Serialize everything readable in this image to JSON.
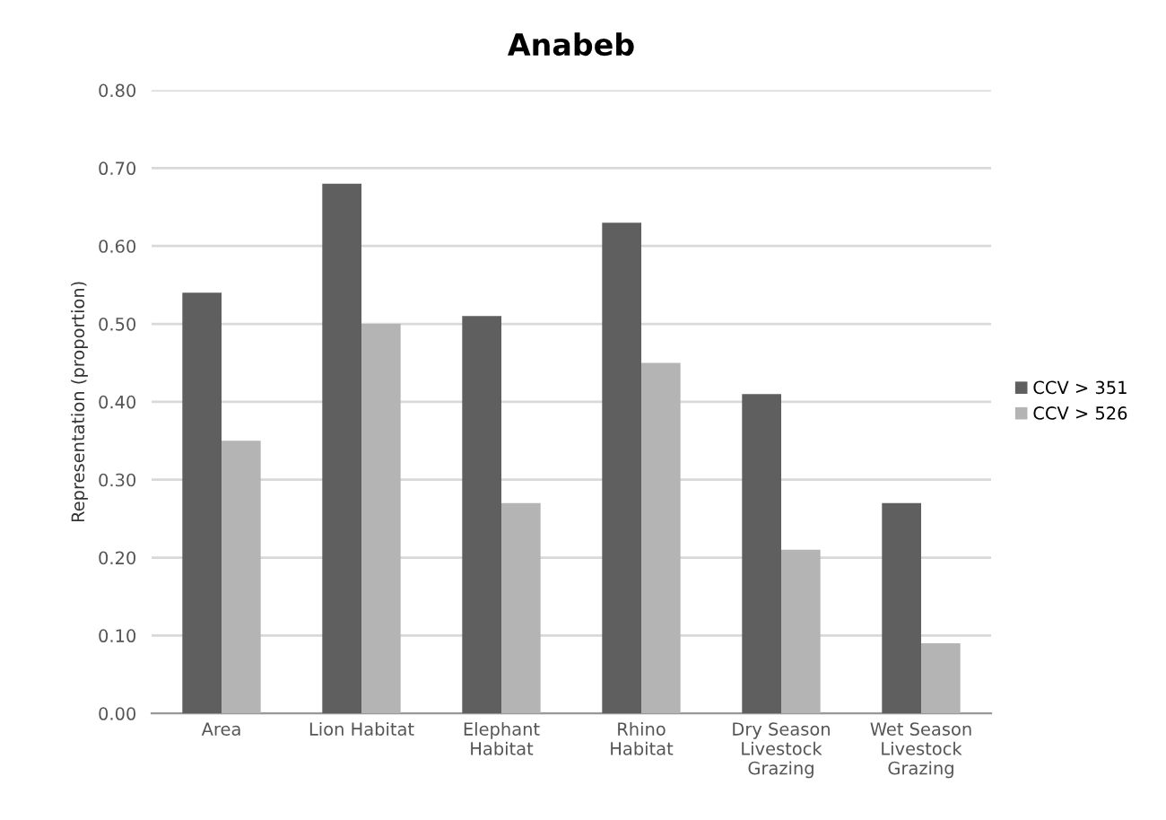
{
  "chart_data": {
    "type": "bar",
    "title": "Anabeb",
    "ylabel": "Representation (proportion)",
    "categories": [
      "Area",
      "Lion Habitat",
      "Elephant Habitat",
      "Rhino Habitat",
      "Dry Season Livestock Grazing",
      "Wet Season Livestock Grazing"
    ],
    "series": [
      {
        "name": "CCV > 351",
        "color": "#5f5f5f",
        "values": [
          0.54,
          0.68,
          0.51,
          0.63,
          0.41,
          0.27
        ]
      },
      {
        "name": "CCV > 526",
        "color": "#b4b4b4",
        "values": [
          0.35,
          0.5,
          0.27,
          0.45,
          0.21,
          0.09
        ]
      }
    ],
    "ylim": [
      0,
      0.8
    ],
    "yticks": [
      {
        "value": 0,
        "label": "0.00"
      },
      {
        "value": 0.1,
        "label": "0.10"
      },
      {
        "value": 0.2,
        "label": "0.20"
      },
      {
        "value": 0.3,
        "label": "0.30"
      },
      {
        "value": 0.4,
        "label": "0.40"
      },
      {
        "value": 0.5,
        "label": "0.50"
      },
      {
        "value": 0.6,
        "label": "0.60"
      },
      {
        "value": 0.7,
        "label": "0.70"
      },
      {
        "value": 0.8,
        "label": "0.80"
      }
    ],
    "grid": "y",
    "legend": "right"
  }
}
